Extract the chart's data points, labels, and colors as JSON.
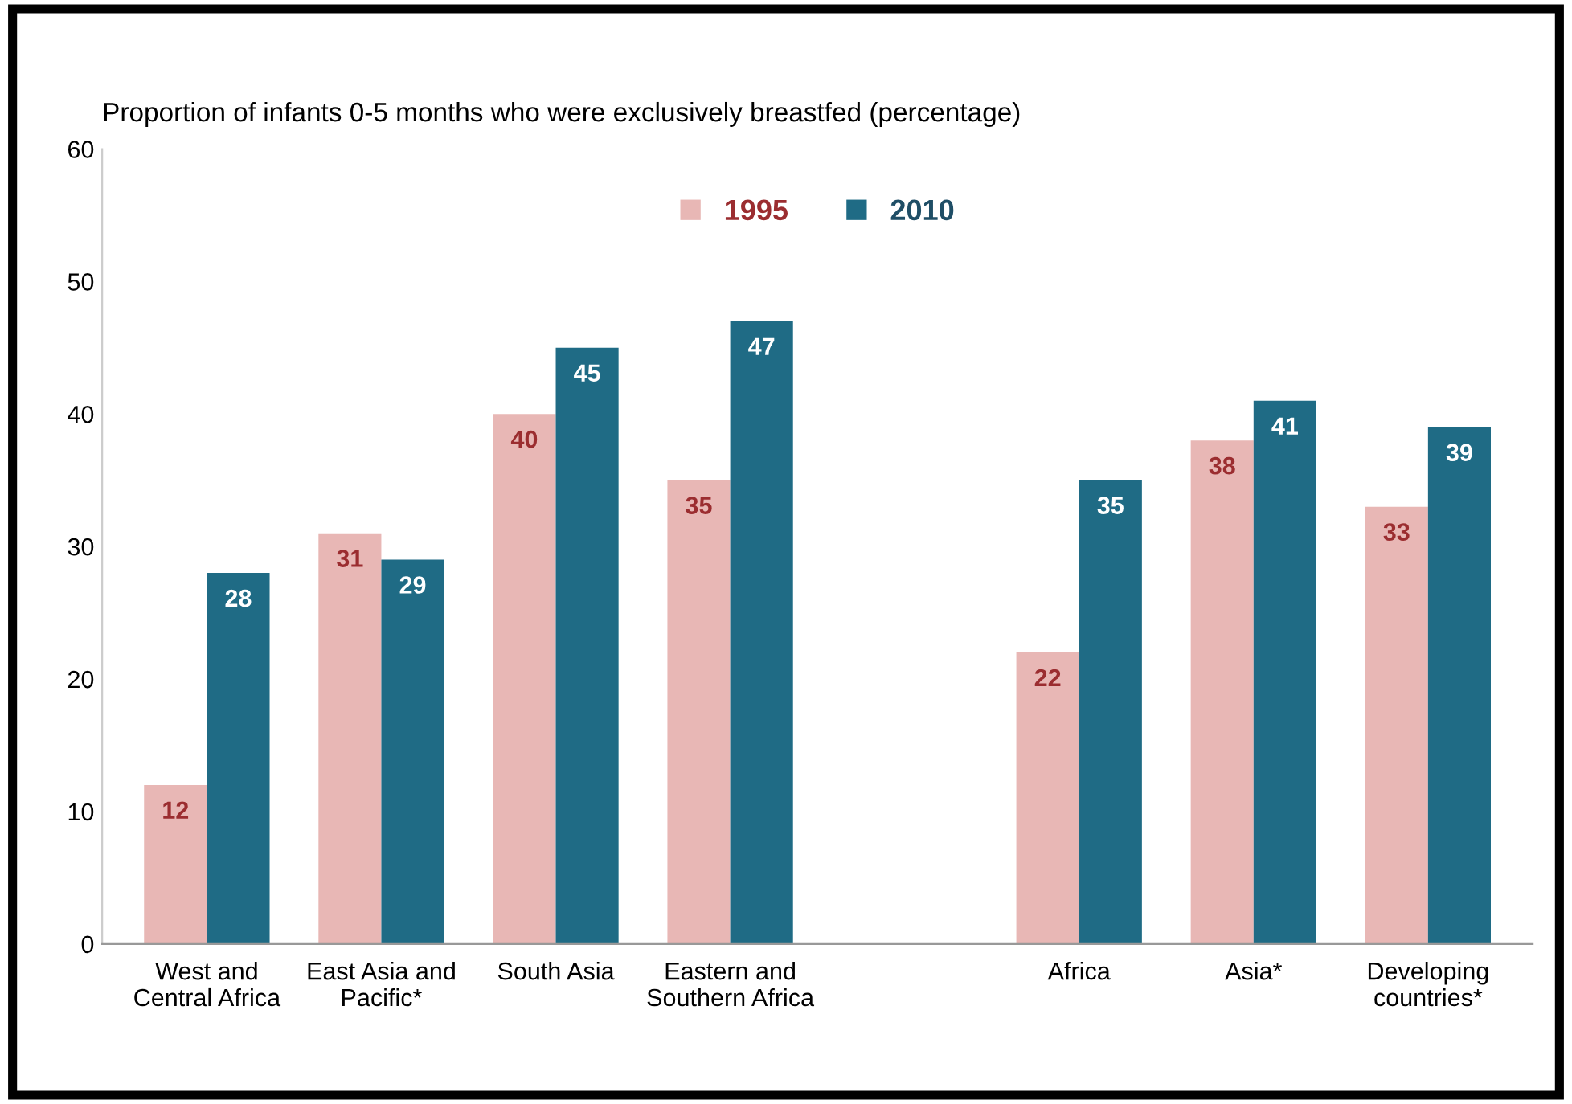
{
  "chart_data": {
    "type": "bar",
    "title": "Proportion of infants 0-5 months who were exclusively breastfed (percentage)",
    "categories": [
      "West and\nCentral Africa",
      "East Asia and\nPacific*",
      "South Asia",
      "Eastern and\nSouthern Africa",
      null,
      "Africa",
      "Asia*",
      "Developing\ncountries*"
    ],
    "series": [
      {
        "name": "1995",
        "color": "#e8b7b5",
        "values": [
          12,
          31,
          40,
          35,
          null,
          22,
          38,
          33
        ]
      },
      {
        "name": "2010",
        "color": "#1f6b85",
        "values": [
          28,
          29,
          45,
          47,
          null,
          35,
          41,
          39
        ]
      }
    ],
    "ylim": [
      0,
      60
    ],
    "yticks": [
      0,
      10,
      20,
      30,
      40,
      50,
      60
    ],
    "grid": false,
    "legend": "top",
    "data_labels": true
  }
}
